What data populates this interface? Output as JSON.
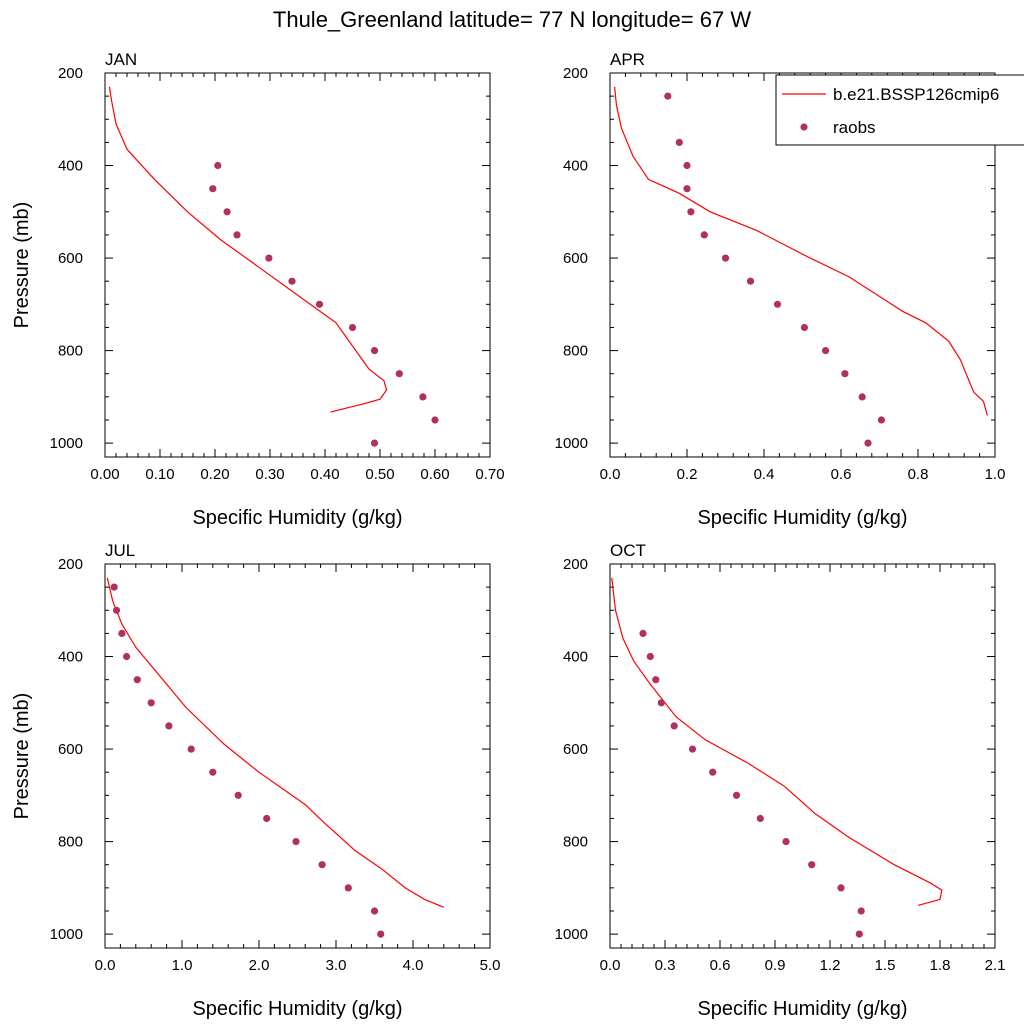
{
  "title": "Thule_Greenland  latitude= 77 N longitude= 67 W",
  "colors": {
    "model": "#ff0000",
    "obs": "#b03060",
    "axis": "#000000"
  },
  "legend": {
    "placement": "top-right of APR panel",
    "model_label": "b.e21.BSSP126cmip6",
    "obs_label": "raobs"
  },
  "chart_data": [
    {
      "type": "line",
      "panel": "JAN",
      "title": "JAN",
      "xlabel": "Specific Humidity (g/kg)",
      "ylabel": "Pressure (mb)",
      "xlim": [
        0,
        0.7
      ],
      "ylim": [
        1030,
        200
      ],
      "x_ticks": [
        "0.00",
        "0.10",
        "0.20",
        "0.30",
        "0.40",
        "0.50",
        "0.60",
        "0.70"
      ],
      "y_ticks": [
        "200",
        "400",
        "600",
        "800",
        "1000"
      ],
      "series": [
        {
          "name": "b.e21.BSSP126cmip6",
          "style": "line",
          "points": [
            [
              0.41,
              933
            ],
            [
              0.47,
              915
            ],
            [
              0.5,
              905
            ],
            [
              0.512,
              885
            ],
            [
              0.507,
              865
            ],
            [
              0.48,
              840
            ],
            [
              0.45,
              790
            ],
            [
              0.42,
              740
            ],
            [
              0.35,
              680
            ],
            [
              0.28,
              620
            ],
            [
              0.21,
              560
            ],
            [
              0.15,
              500
            ],
            [
              0.09,
              430
            ],
            [
              0.04,
              365
            ],
            [
              0.02,
              310
            ],
            [
              0.012,
              260
            ],
            [
              0.008,
              230
            ]
          ]
        },
        {
          "name": "raobs",
          "style": "markers",
          "points": [
            [
              0.205,
              400
            ],
            [
              0.196,
              450
            ],
            [
              0.222,
              500
            ],
            [
              0.24,
              550
            ],
            [
              0.298,
              600
            ],
            [
              0.34,
              650
            ],
            [
              0.39,
              700
            ],
            [
              0.45,
              750
            ],
            [
              0.49,
              800
            ],
            [
              0.535,
              850
            ],
            [
              0.578,
              900
            ],
            [
              0.6,
              950
            ],
            [
              0.49,
              1000
            ]
          ]
        }
      ]
    },
    {
      "type": "line",
      "panel": "APR",
      "title": "APR",
      "xlabel": "Specific Humidity (g/kg)",
      "ylabel": "",
      "xlim": [
        0,
        1.0
      ],
      "ylim": [
        1030,
        200
      ],
      "x_ticks": [
        "0.0",
        "0.2",
        "0.4",
        "0.6",
        "0.8",
        "1.0"
      ],
      "y_ticks": [
        "200",
        "400",
        "600",
        "800",
        "1000"
      ],
      "series": [
        {
          "name": "b.e21.BSSP126cmip6",
          "style": "line",
          "points": [
            [
              0.98,
              940
            ],
            [
              0.97,
              910
            ],
            [
              0.945,
              890
            ],
            [
              0.93,
              860
            ],
            [
              0.91,
              820
            ],
            [
              0.88,
              780
            ],
            [
              0.82,
              740
            ],
            [
              0.76,
              715
            ],
            [
              0.62,
              640
            ],
            [
              0.52,
              600
            ],
            [
              0.38,
              540
            ],
            [
              0.26,
              500
            ],
            [
              0.18,
              460
            ],
            [
              0.1,
              430
            ],
            [
              0.06,
              380
            ],
            [
              0.03,
              320
            ],
            [
              0.017,
              270
            ],
            [
              0.012,
              230
            ]
          ]
        },
        {
          "name": "raobs",
          "style": "markers",
          "points": [
            [
              0.15,
              250
            ],
            [
              0.18,
              350
            ],
            [
              0.2,
              400
            ],
            [
              0.2,
              450
            ],
            [
              0.21,
              500
            ],
            [
              0.245,
              550
            ],
            [
              0.3,
              600
            ],
            [
              0.365,
              650
            ],
            [
              0.435,
              700
            ],
            [
              0.505,
              750
            ],
            [
              0.56,
              800
            ],
            [
              0.61,
              850
            ],
            [
              0.655,
              900
            ],
            [
              0.705,
              950
            ],
            [
              0.67,
              1000
            ]
          ]
        }
      ]
    },
    {
      "type": "line",
      "panel": "JUL",
      "title": "JUL",
      "xlabel": "Specific Humidity (g/kg)",
      "ylabel": "Pressure (mb)",
      "xlim": [
        0,
        5.0
      ],
      "ylim": [
        1030,
        200
      ],
      "x_ticks": [
        "0.0",
        "1.0",
        "2.0",
        "3.0",
        "4.0",
        "5.0"
      ],
      "y_ticks": [
        "200",
        "400",
        "600",
        "800",
        "1000"
      ],
      "series": [
        {
          "name": "b.e21.BSSP126cmip6",
          "style": "line",
          "points": [
            [
              4.4,
              942
            ],
            [
              4.15,
              925
            ],
            [
              3.9,
              900
            ],
            [
              3.6,
              860
            ],
            [
              3.25,
              820
            ],
            [
              2.85,
              760
            ],
            [
              2.6,
              720
            ],
            [
              2.0,
              650
            ],
            [
              1.55,
              590
            ],
            [
              1.05,
              510
            ],
            [
              0.65,
              430
            ],
            [
              0.4,
              380
            ],
            [
              0.22,
              330
            ],
            [
              0.1,
              280
            ],
            [
              0.03,
              230
            ]
          ]
        },
        {
          "name": "raobs",
          "style": "markers",
          "points": [
            [
              0.12,
              250
            ],
            [
              0.15,
              300
            ],
            [
              0.22,
              350
            ],
            [
              0.28,
              400
            ],
            [
              0.42,
              450
            ],
            [
              0.6,
              500
            ],
            [
              0.83,
              550
            ],
            [
              1.12,
              600
            ],
            [
              1.4,
              650
            ],
            [
              1.73,
              700
            ],
            [
              2.1,
              750
            ],
            [
              2.48,
              800
            ],
            [
              2.82,
              850
            ],
            [
              3.16,
              900
            ],
            [
              3.5,
              950
            ],
            [
              3.58,
              1000
            ]
          ]
        }
      ]
    },
    {
      "type": "line",
      "panel": "OCT",
      "title": "OCT",
      "xlabel": "Specific Humidity (g/kg)",
      "ylabel": "",
      "xlim": [
        0,
        2.1
      ],
      "ylim": [
        1030,
        200
      ],
      "x_ticks": [
        "0.0",
        "0.3",
        "0.6",
        "0.9",
        "1.2",
        "1.5",
        "1.8",
        "2.1"
      ],
      "y_ticks": [
        "200",
        "400",
        "600",
        "800",
        "1000"
      ],
      "series": [
        {
          "name": "b.e21.BSSP126cmip6",
          "style": "line",
          "points": [
            [
              1.68,
              938
            ],
            [
              1.8,
              925
            ],
            [
              1.81,
              905
            ],
            [
              1.75,
              890
            ],
            [
              1.55,
              850
            ],
            [
              1.3,
              790
            ],
            [
              1.12,
              740
            ],
            [
              0.95,
              680
            ],
            [
              0.75,
              630
            ],
            [
              0.52,
              580
            ],
            [
              0.36,
              530
            ],
            [
              0.22,
              460
            ],
            [
              0.13,
              410
            ],
            [
              0.07,
              360
            ],
            [
              0.03,
              300
            ],
            [
              0.01,
              230
            ]
          ]
        },
        {
          "name": "raobs",
          "style": "markers",
          "points": [
            [
              0.18,
              350
            ],
            [
              0.22,
              400
            ],
            [
              0.25,
              450
            ],
            [
              0.28,
              500
            ],
            [
              0.35,
              550
            ],
            [
              0.45,
              600
            ],
            [
              0.56,
              650
            ],
            [
              0.69,
              700
            ],
            [
              0.82,
              750
            ],
            [
              0.96,
              800
            ],
            [
              1.1,
              850
            ],
            [
              1.26,
              900
            ],
            [
              1.37,
              950
            ],
            [
              1.36,
              1000
            ]
          ]
        }
      ]
    }
  ]
}
